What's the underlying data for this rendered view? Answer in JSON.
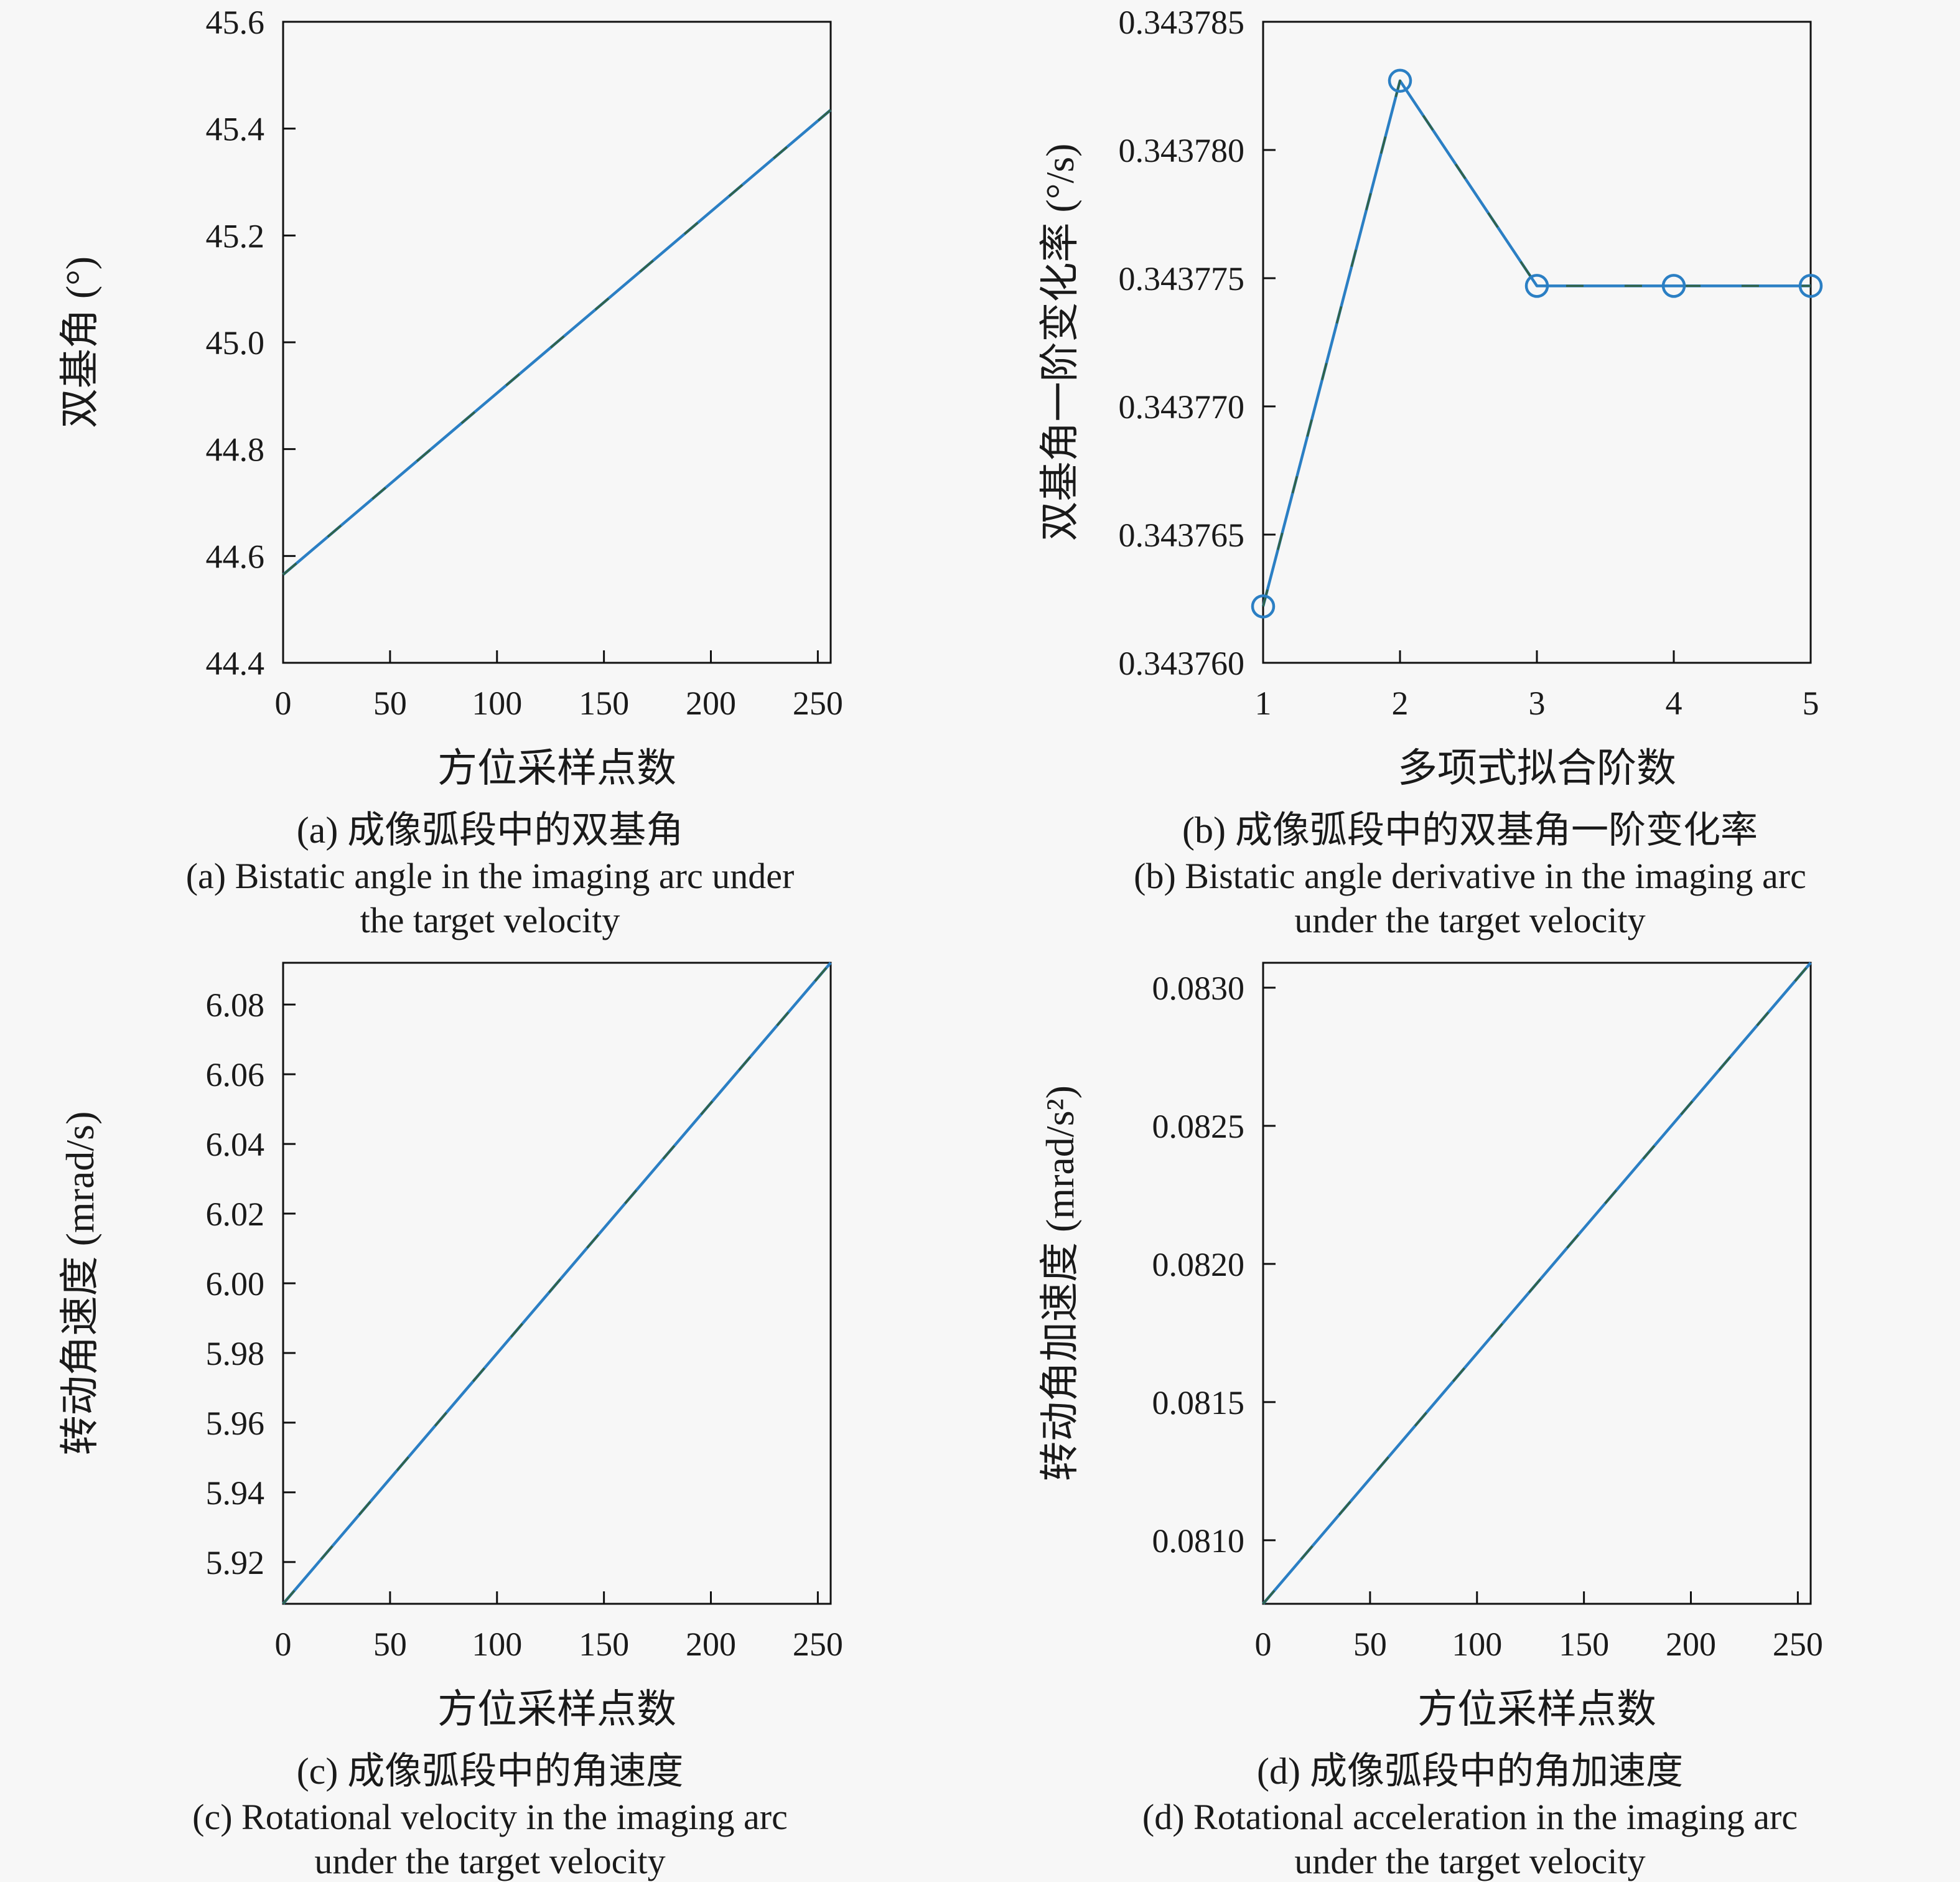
{
  "figure": {
    "background": "#f7f7f7",
    "line_color": "#2b7fc4",
    "dash_color": "#30634a",
    "axis_color": "#111111",
    "text_color": "#1a1a1a"
  },
  "chart_data": [
    {
      "id": "a",
      "type": "line",
      "xlabel": "方位采样点数",
      "ylabel": "双基角 (°)",
      "xlim": [
        0,
        256
      ],
      "ylim": [
        44.4,
        45.6
      ],
      "grid": false,
      "legend": "none",
      "xticks": [
        {
          "v": 0,
          "label": "0"
        },
        {
          "v": 50,
          "label": "50"
        },
        {
          "v": 100,
          "label": "100"
        },
        {
          "v": 150,
          "label": "150"
        },
        {
          "v": 200,
          "label": "200"
        },
        {
          "v": 250,
          "label": "250"
        }
      ],
      "yticks": [
        {
          "v": 44.4,
          "label": "44.4"
        },
        {
          "v": 44.6,
          "label": "44.6"
        },
        {
          "v": 44.8,
          "label": "44.8"
        },
        {
          "v": 45.0,
          "label": "45.0"
        },
        {
          "v": 45.2,
          "label": "45.2"
        },
        {
          "v": 45.4,
          "label": "45.4"
        },
        {
          "v": 45.6,
          "label": "45.6"
        }
      ],
      "series": [
        {
          "name": "bistatic-angle",
          "marker": false,
          "x": [
            0,
            256
          ],
          "y": [
            44.565,
            45.435
          ]
        }
      ],
      "caption_cjk": "(a) 成像弧段中的双基角",
      "caption_en_line1": "(a) Bistatic angle in the imaging arc under",
      "caption_en_line2": "the target velocity"
    },
    {
      "id": "b",
      "type": "line",
      "xlabel": "多项式拟合阶数",
      "ylabel": "双基角一阶变化率 (°/s)",
      "xlim": [
        1,
        5
      ],
      "ylim": [
        0.34376,
        0.343785
      ],
      "grid": false,
      "legend": "none",
      "xticks": [
        {
          "v": 1,
          "label": "1"
        },
        {
          "v": 2,
          "label": "2"
        },
        {
          "v": 3,
          "label": "3"
        },
        {
          "v": 4,
          "label": "4"
        },
        {
          "v": 5,
          "label": "5"
        }
      ],
      "yticks": [
        {
          "v": 0.34376,
          "label": "0.343760"
        },
        {
          "v": 0.343765,
          "label": "0.343765"
        },
        {
          "v": 0.34377,
          "label": "0.343770"
        },
        {
          "v": 0.343775,
          "label": "0.343775"
        },
        {
          "v": 0.34378,
          "label": "0.343780"
        },
        {
          "v": 0.343785,
          "label": "0.343785"
        }
      ],
      "series": [
        {
          "name": "bistatic-angle-derivative",
          "marker": true,
          "x": [
            1,
            2,
            3,
            4,
            5
          ],
          "y": [
            0.3437622,
            0.3437827,
            0.3437747,
            0.3437747,
            0.3437747
          ]
        }
      ],
      "caption_cjk": "(b) 成像弧段中的双基角一阶变化率",
      "caption_en_line1": "(b) Bistatic angle derivative in the imaging arc",
      "caption_en_line2": "under the target velocity"
    },
    {
      "id": "c",
      "type": "line",
      "xlabel": "方位采样点数",
      "ylabel": "转动角速度 (mrad/s)",
      "xlim": [
        0,
        256
      ],
      "ylim": [
        5.908,
        6.092
      ],
      "grid": false,
      "legend": "none",
      "xticks": [
        {
          "v": 0,
          "label": "0"
        },
        {
          "v": 50,
          "label": "50"
        },
        {
          "v": 100,
          "label": "100"
        },
        {
          "v": 150,
          "label": "150"
        },
        {
          "v": 200,
          "label": "200"
        },
        {
          "v": 250,
          "label": "250"
        }
      ],
      "yticks": [
        {
          "v": 5.92,
          "label": "5.92"
        },
        {
          "v": 5.94,
          "label": "5.94"
        },
        {
          "v": 5.96,
          "label": "5.96"
        },
        {
          "v": 5.98,
          "label": "5.98"
        },
        {
          "v": 6.0,
          "label": "6.00"
        },
        {
          "v": 6.02,
          "label": "6.02"
        },
        {
          "v": 6.04,
          "label": "6.04"
        },
        {
          "v": 6.06,
          "label": "6.06"
        },
        {
          "v": 6.08,
          "label": "6.08"
        }
      ],
      "series": [
        {
          "name": "rotational-velocity",
          "marker": false,
          "x": [
            0,
            256
          ],
          "y": [
            5.908,
            6.092
          ]
        }
      ],
      "caption_cjk": "(c) 成像弧段中的角速度",
      "caption_en_line1": "(c) Rotational velocity in the imaging arc",
      "caption_en_line2": "under the target velocity"
    },
    {
      "id": "d",
      "type": "line",
      "xlabel": "方位采样点数",
      "ylabel": "转动角加速度 (mrad/s²)",
      "xlim": [
        0,
        256
      ],
      "ylim": [
        0.08077,
        0.08309
      ],
      "grid": false,
      "legend": "none",
      "xticks": [
        {
          "v": 0,
          "label": "0"
        },
        {
          "v": 50,
          "label": "50"
        },
        {
          "v": 100,
          "label": "100"
        },
        {
          "v": 150,
          "label": "150"
        },
        {
          "v": 200,
          "label": "200"
        },
        {
          "v": 250,
          "label": "250"
        }
      ],
      "yticks": [
        {
          "v": 0.081,
          "label": "0.0810"
        },
        {
          "v": 0.0815,
          "label": "0.0815"
        },
        {
          "v": 0.082,
          "label": "0.0820"
        },
        {
          "v": 0.0825,
          "label": "0.0825"
        },
        {
          "v": 0.083,
          "label": "0.0830"
        }
      ],
      "series": [
        {
          "name": "rotational-acceleration",
          "marker": false,
          "x": [
            0,
            256
          ],
          "y": [
            0.08077,
            0.08309
          ]
        }
      ],
      "caption_cjk": "(d) 成像弧段中的角加速度",
      "caption_en_line1": "(d) Rotational acceleration in the imaging arc",
      "caption_en_line2": "under the target velocity"
    }
  ]
}
